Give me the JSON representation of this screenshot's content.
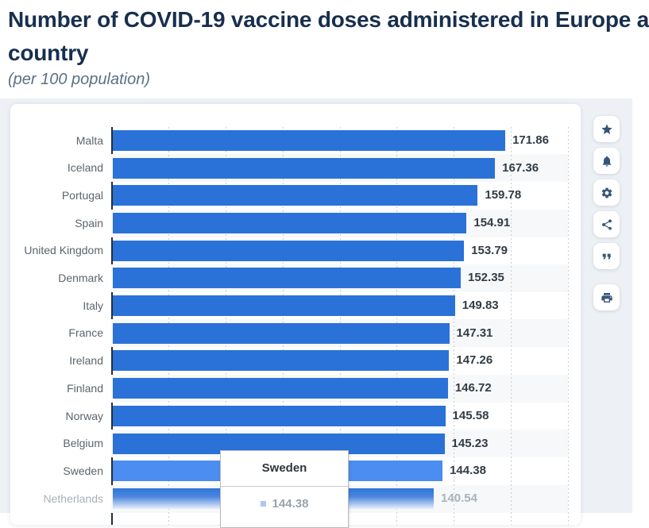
{
  "header": {
    "title_line1": "Number of COVID-19 vaccine doses administered in Europe a",
    "title_line2": "country",
    "subtitle": "(per 100 population)"
  },
  "chart_data": {
    "type": "bar",
    "orientation": "horizontal",
    "title": "Number of COVID-19 vaccine doses administered in Europe a country",
    "subtitle": "(per 100 population)",
    "categories": [
      "Malta",
      "Iceland",
      "Portugal",
      "Spain",
      "United Kingdom",
      "Denmark",
      "Italy",
      "France",
      "Ireland",
      "Finland",
      "Norway",
      "Belgium",
      "Sweden",
      "Netherlands"
    ],
    "values": [
      171.86,
      167.36,
      159.78,
      154.91,
      153.79,
      152.35,
      149.83,
      147.31,
      147.26,
      146.72,
      145.58,
      145.23,
      144.38,
      140.54
    ],
    "xlim": [
      0,
      200
    ],
    "grid_step": 25,
    "grid": true,
    "legend": false,
    "bar_color": "#2a72d8",
    "highlight_color": "#4b8df0",
    "highlight_index": 12,
    "fade_index": 13
  },
  "tooltip": {
    "title": "Sweden",
    "value": "144.38",
    "marker_color": "#a9c8f2"
  },
  "toolbar": {
    "buttons": [
      {
        "name": "favorite",
        "icon": "star"
      },
      {
        "name": "notifications",
        "icon": "bell"
      },
      {
        "name": "settings",
        "icon": "gear"
      },
      {
        "name": "share",
        "icon": "share"
      },
      {
        "name": "cite",
        "icon": "quote"
      },
      {
        "name": "print",
        "icon": "printer"
      }
    ]
  }
}
